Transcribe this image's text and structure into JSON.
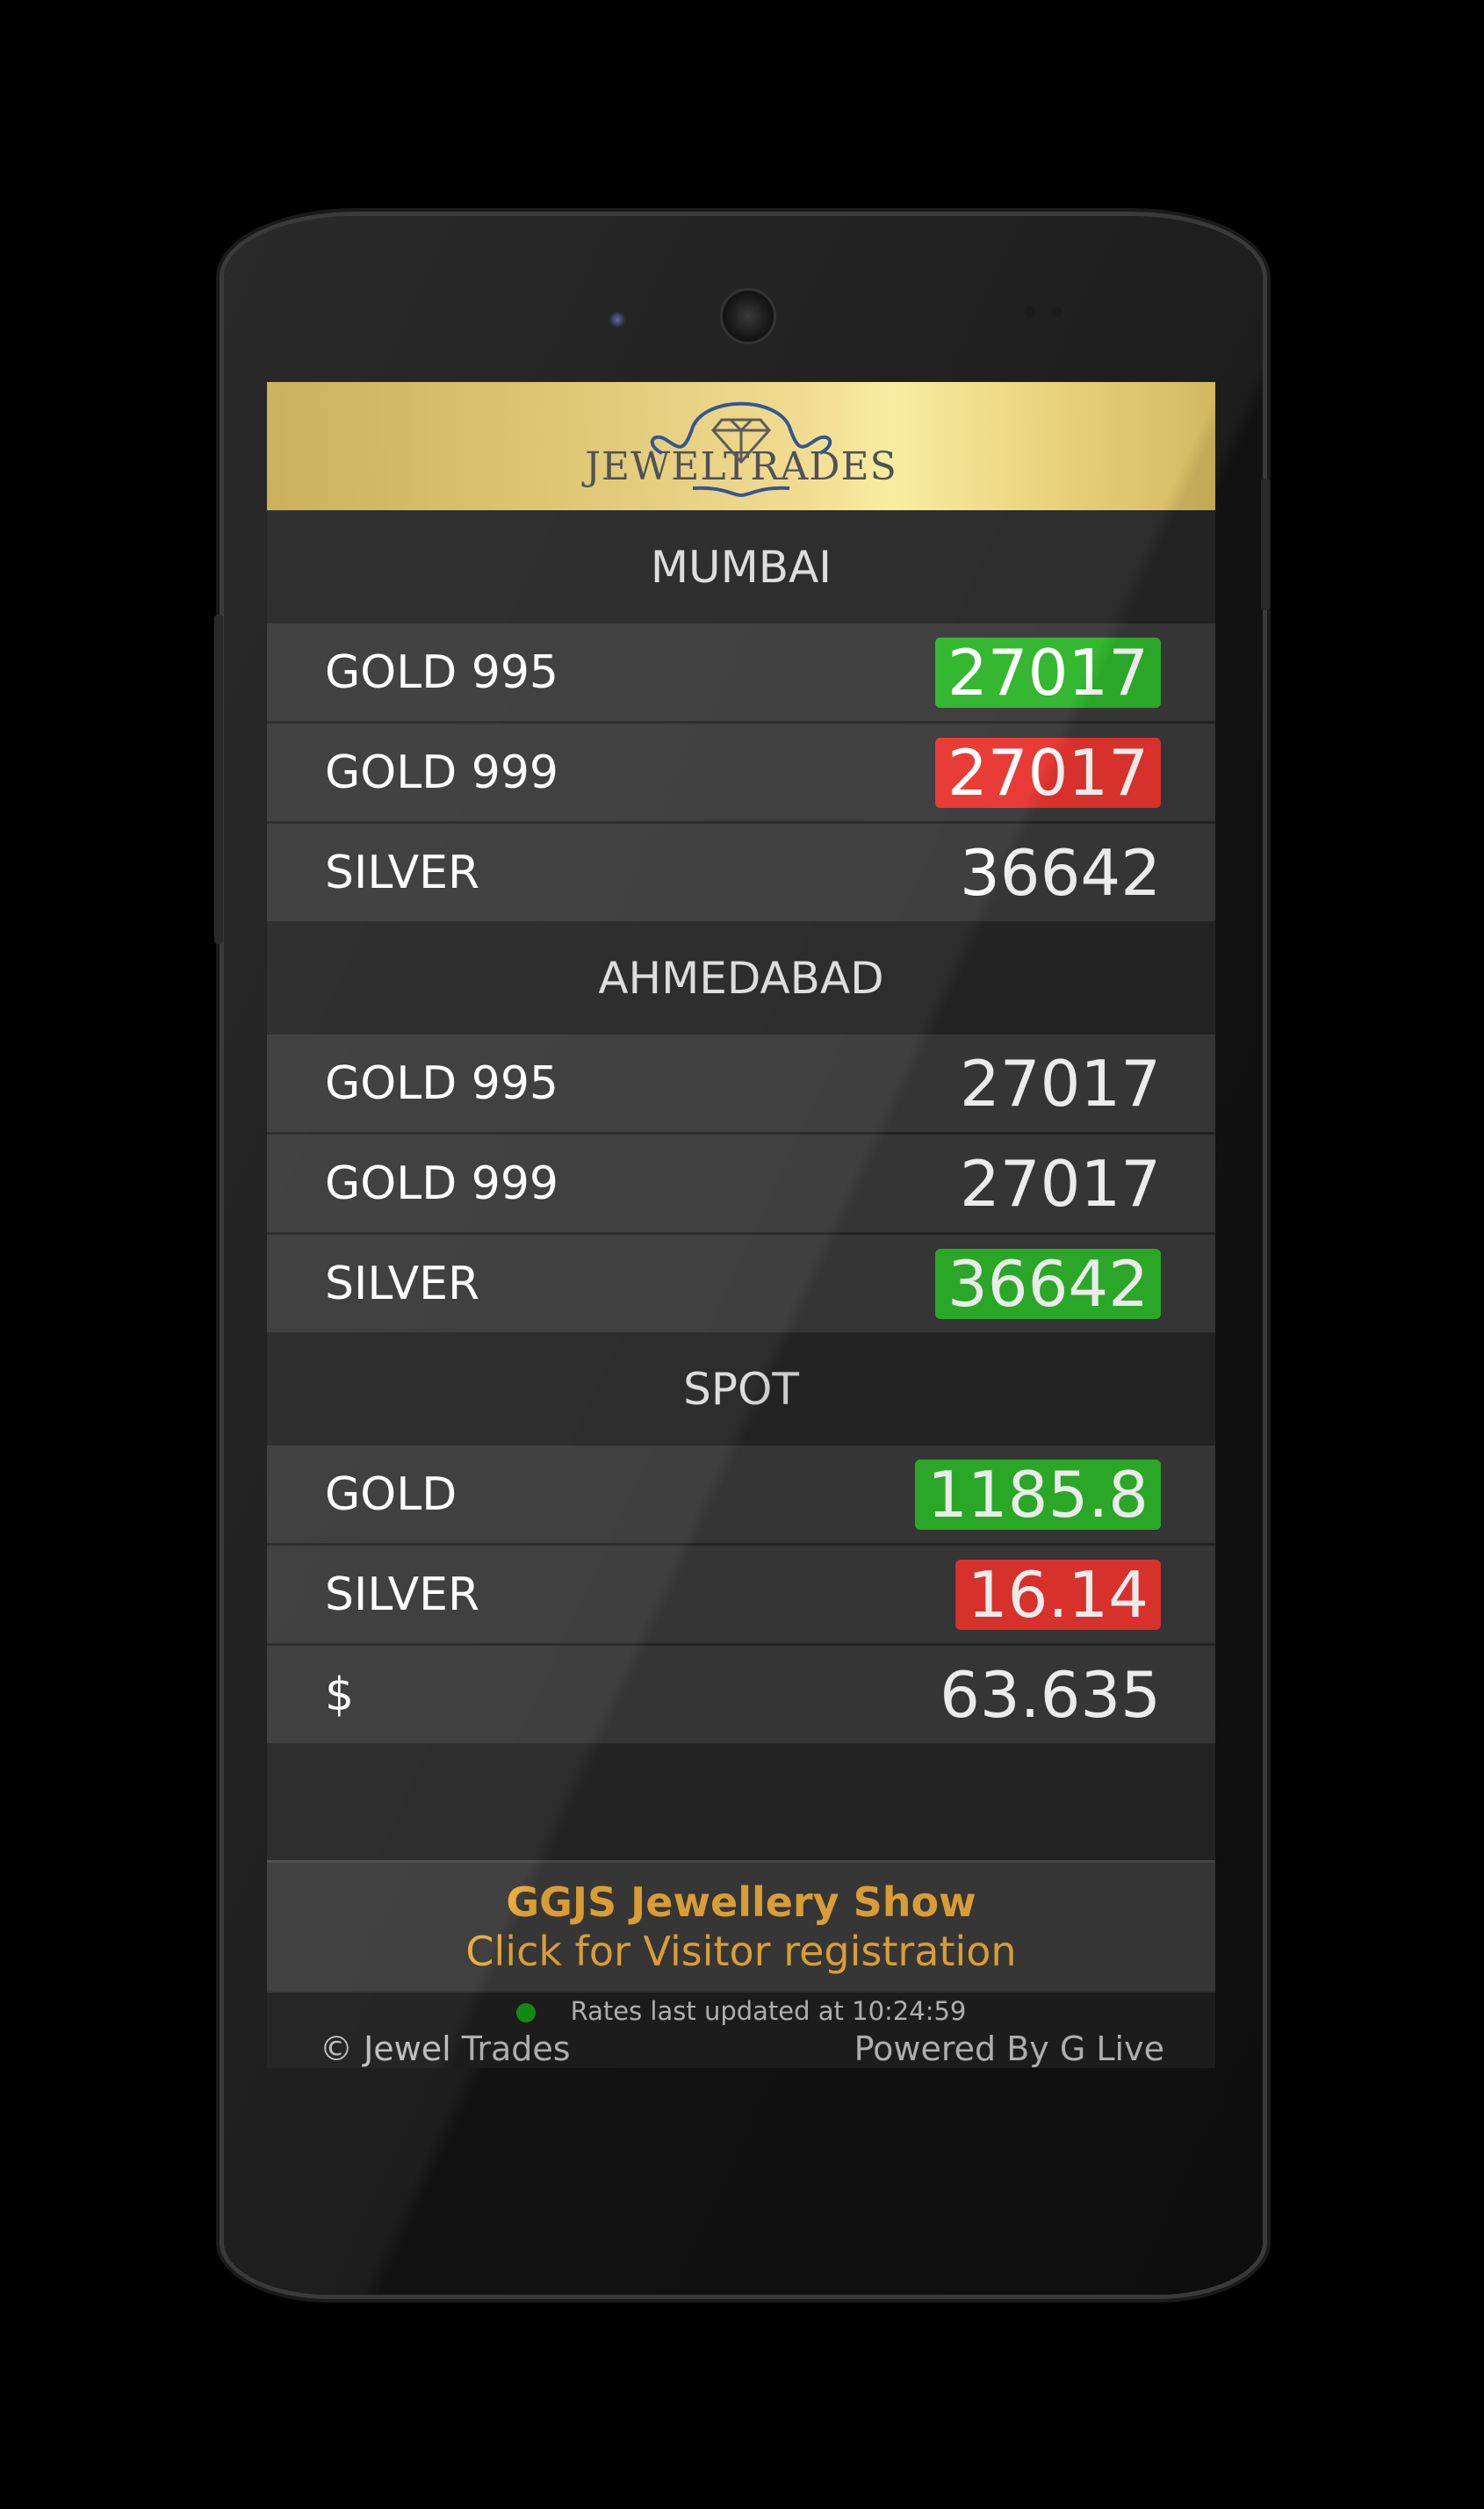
{
  "app": {
    "logo_text": "JEWELTRADES",
    "logo_icon": "diamond-icon"
  },
  "colors": {
    "up": "#2eb52a",
    "down": "#e8352f",
    "banner_text": "#eaaa3a",
    "status_dot": "#149514"
  },
  "sections": [
    {
      "title": "MUMBAI",
      "rows": [
        {
          "label": "GOLD 995",
          "value": "27017",
          "trend": "up"
        },
        {
          "label": "GOLD 999",
          "value": "27017",
          "trend": "down"
        },
        {
          "label": "SILVER",
          "value": "36642",
          "trend": "flat"
        }
      ]
    },
    {
      "title": "AHMEDABAD",
      "rows": [
        {
          "label": "GOLD 995",
          "value": "27017",
          "trend": "flat"
        },
        {
          "label": "GOLD 999",
          "value": "27017",
          "trend": "flat"
        },
        {
          "label": "SILVER",
          "value": "36642",
          "trend": "up"
        }
      ]
    },
    {
      "title": "SPOT",
      "rows": [
        {
          "label": "GOLD",
          "value": "1185.8",
          "trend": "up"
        },
        {
          "label": "SILVER",
          "value": "16.14",
          "trend": "down"
        },
        {
          "label": "$",
          "value": "63.635",
          "trend": "flat"
        }
      ]
    }
  ],
  "banner": {
    "title": "GGJS Jewellery Show",
    "subtitle": "Click for Visitor registration"
  },
  "footer": {
    "status": "Rates last updated at 10:24:59",
    "copyright": "© Jewel Trades",
    "powered_by": "Powered By G Live"
  }
}
